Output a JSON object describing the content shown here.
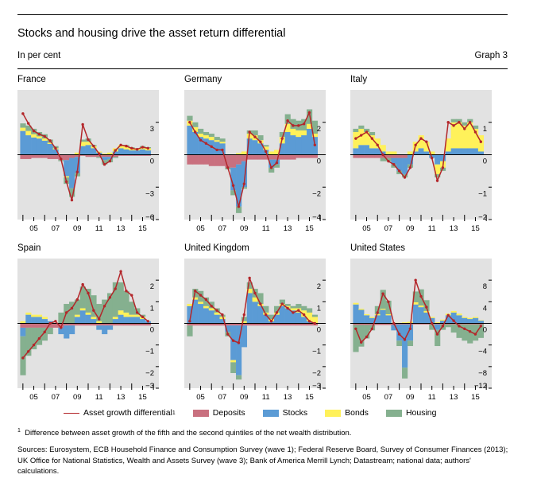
{
  "header": {
    "title": "Stocks and housing drive the asset return differential",
    "subtitle": "In per cent",
    "graph_label": "Graph 3"
  },
  "colors": {
    "differential": "#b3262a",
    "deposits": "#c9707f",
    "stocks": "#5b9bd5",
    "bonds": "#fff15a",
    "housing": "#85b08f",
    "plot_bg": "#e2e2e2"
  },
  "legend": {
    "differential": "Asset growth differential",
    "differential_sup": "1",
    "deposits": "Deposits",
    "stocks": "Stocks",
    "bonds": "Bonds",
    "housing": "Housing"
  },
  "footnote": {
    "marker": "1",
    "text": "Difference between asset growth of the fifth and the second quintiles of the net wealth distribution."
  },
  "sources": "Sources: Eurosystem, ECB Household Finance and Consumption Survey (wave 1); Federal Reserve Board, Survey of Consumer Finances (2013); UK Office for National Statistics, Wealth and Assets Survey (wave 3); Bank of America Merrill Lynch; Datastream; national data; authors' calculations.",
  "chart_data": [
    {
      "type": "bar",
      "title": "France",
      "x_ticks": [
        "05",
        "07",
        "09",
        "11",
        "13",
        "15"
      ],
      "ylim": [
        -6,
        6
      ],
      "y_ticks": [
        3,
        0,
        -3,
        -6
      ],
      "x": [
        2004,
        2004.5,
        2005,
        2005.5,
        2006,
        2006.5,
        2007,
        2007.5,
        2008,
        2008.5,
        2009,
        2009.5,
        2010,
        2010.5,
        2011,
        2011.5,
        2012,
        2012.5,
        2013,
        2013.5,
        2014,
        2014.5,
        2015,
        2015.5
      ],
      "series": [
        {
          "key": "deposits",
          "values": [
            -0.4,
            -0.4,
            -0.3,
            -0.3,
            -0.3,
            -0.4,
            -0.4,
            -0.5,
            -0.5,
            -0.3,
            -0.2,
            -0.1,
            -0.2,
            -0.2,
            -0.2,
            -0.2,
            -0.2,
            -0.2,
            -0.1,
            -0.1,
            -0.1,
            -0.1,
            -0.1,
            -0.1
          ]
        },
        {
          "key": "stocks",
          "values": [
            2.2,
            1.8,
            1.6,
            1.5,
            1.3,
            1.0,
            0.5,
            0.0,
            -1.5,
            -2.8,
            -1.5,
            0.8,
            0.9,
            0.6,
            0.2,
            -0.3,
            -0.2,
            0.3,
            0.6,
            0.5,
            0.4,
            0.4,
            0.5,
            0.4
          ]
        },
        {
          "key": "bonds",
          "values": [
            0.3,
            0.4,
            0.3,
            0.2,
            0.2,
            0.1,
            0.1,
            0.0,
            -0.1,
            0.0,
            0.2,
            0.4,
            0.3,
            0.2,
            0.1,
            0.1,
            0.2,
            0.3,
            0.3,
            0.3,
            0.2,
            0.2,
            0.2,
            0.2
          ]
        },
        {
          "key": "housing",
          "values": [
            0.4,
            0.5,
            0.5,
            0.4,
            0.4,
            0.3,
            0.2,
            -0.1,
            -0.6,
            -0.8,
            -0.3,
            0.2,
            0.3,
            0.1,
            -0.1,
            -0.4,
            -0.3,
            -0.1,
            0.0,
            0.1,
            0.1,
            0.0,
            0.1,
            0.1
          ]
        }
      ],
      "differential": [
        3.8,
        2.9,
        2.2,
        1.9,
        1.7,
        1.3,
        0.6,
        -0.4,
        -2.5,
        -4.2,
        -1.6,
        2.8,
        1.4,
        0.8,
        0.1,
        -0.9,
        -0.6,
        0.4,
        0.9,
        0.8,
        0.6,
        0.5,
        0.7,
        0.6
      ]
    },
    {
      "type": "bar",
      "title": "Germany",
      "x_ticks": [
        "05",
        "07",
        "09",
        "11",
        "13",
        "15"
      ],
      "ylim": [
        -4,
        4
      ],
      "y_ticks": [
        2,
        0,
        -2,
        -4
      ],
      "x": [
        2004,
        2004.5,
        2005,
        2005.5,
        2006,
        2006.5,
        2007,
        2007.5,
        2008,
        2008.5,
        2009,
        2009.5,
        2010,
        2010.5,
        2011,
        2011.5,
        2012,
        2012.5,
        2013,
        2013.5,
        2014,
        2014.5,
        2015,
        2015.5
      ],
      "series": [
        {
          "key": "deposits",
          "values": [
            -0.6,
            -0.6,
            -0.6,
            -0.6,
            -0.7,
            -0.7,
            -0.7,
            -0.8,
            -0.8,
            -0.6,
            -0.4,
            -0.3,
            -0.3,
            -0.3,
            -0.3,
            -0.3,
            -0.3,
            -0.3,
            -0.3,
            -0.3,
            -0.2,
            -0.2,
            -0.2,
            -0.2
          ]
        },
        {
          "key": "stocks",
          "values": [
            1.8,
            1.4,
            1.1,
            1.0,
            0.9,
            0.8,
            0.7,
            0.0,
            -1.4,
            -2.6,
            -1.6,
            1.0,
            0.9,
            0.7,
            0.3,
            -0.5,
            -0.3,
            0.7,
            1.4,
            1.2,
            1.1,
            1.2,
            1.6,
            1.1
          ]
        },
        {
          "key": "bonds",
          "values": [
            0.3,
            0.3,
            0.2,
            0.2,
            0.2,
            0.1,
            0.1,
            0.0,
            0.0,
            0.1,
            0.2,
            0.3,
            0.3,
            0.2,
            0.2,
            0.2,
            0.3,
            0.4,
            0.5,
            0.4,
            0.4,
            0.3,
            0.3,
            0.2
          ]
        },
        {
          "key": "housing",
          "values": [
            0.3,
            0.3,
            0.3,
            0.2,
            0.2,
            0.2,
            0.2,
            -0.1,
            -0.3,
            -0.4,
            -0.1,
            0.2,
            0.3,
            0.3,
            0.1,
            -0.3,
            -0.2,
            0.3,
            0.6,
            0.6,
            0.6,
            0.7,
            0.9,
            0.8
          ]
        }
      ],
      "differential": [
        2.0,
        1.4,
        0.9,
        0.7,
        0.5,
        0.3,
        0.3,
        -0.8,
        -1.9,
        -3.2,
        -1.8,
        1.4,
        1.1,
        0.8,
        0.2,
        -0.8,
        -0.5,
        1.0,
        2.1,
        1.8,
        1.8,
        1.9,
        2.6,
        0.6
      ]
    },
    {
      "type": "bar",
      "title": "Italy",
      "x_ticks": [
        "05",
        "07",
        "09",
        "11",
        "13",
        "15"
      ],
      "ylim": [
        -2,
        2
      ],
      "y_ticks": [
        1,
        0,
        -1,
        -2
      ],
      "x": [
        2004,
        2004.5,
        2005,
        2005.5,
        2006,
        2006.5,
        2007,
        2007.5,
        2008,
        2008.5,
        2009,
        2009.5,
        2010,
        2010.5,
        2011,
        2011.5,
        2012,
        2012.5,
        2013,
        2013.5,
        2014,
        2014.5,
        2015,
        2015.5
      ],
      "series": [
        {
          "key": "deposits",
          "values": [
            -0.1,
            -0.1,
            -0.1,
            -0.1,
            -0.1,
            -0.1,
            -0.1,
            -0.1,
            -0.1,
            -0.1,
            0.0,
            0.0,
            0.0,
            0.0,
            0.0,
            0.0,
            0.0,
            0.0,
            0.0,
            0.0,
            0.0,
            0.0,
            0.0,
            0.0
          ]
        },
        {
          "key": "stocks",
          "values": [
            0.2,
            0.3,
            0.3,
            0.2,
            0.2,
            0.1,
            0.0,
            -0.2,
            -0.4,
            -0.5,
            -0.3,
            0.1,
            0.2,
            0.1,
            -0.1,
            -0.3,
            -0.2,
            0.1,
            0.2,
            0.2,
            0.2,
            0.2,
            0.2,
            0.1
          ]
        },
        {
          "key": "bonds",
          "values": [
            0.5,
            0.5,
            0.4,
            0.4,
            0.3,
            0.2,
            0.1,
            0.1,
            0.0,
            0.0,
            0.1,
            0.3,
            0.4,
            0.3,
            0.1,
            -0.3,
            -0.2,
            0.4,
            0.8,
            0.8,
            0.7,
            0.8,
            0.6,
            0.5
          ]
        },
        {
          "key": "housing",
          "values": [
            0.1,
            0.1,
            0.1,
            0.1,
            0.0,
            -0.1,
            -0.1,
            -0.1,
            -0.1,
            -0.1,
            -0.1,
            0.0,
            0.0,
            0.0,
            0.0,
            -0.1,
            -0.1,
            0.0,
            0.1,
            0.1,
            0.1,
            0.1,
            0.1,
            0.0
          ]
        }
      ],
      "differential": [
        0.5,
        0.6,
        0.7,
        0.5,
        0.3,
        0.0,
        -0.2,
        -0.3,
        -0.5,
        -0.7,
        -0.4,
        0.3,
        0.5,
        0.4,
        -0.1,
        -0.8,
        -0.4,
        1.0,
        0.9,
        1.0,
        0.8,
        1.0,
        0.7,
        0.4
      ]
    },
    {
      "type": "bar",
      "title": "Spain",
      "x_ticks": [
        "05",
        "07",
        "09",
        "11",
        "13",
        "15"
      ],
      "ylim": [
        -3,
        3
      ],
      "y_ticks": [
        2,
        1,
        0,
        -1,
        -2,
        -3
      ],
      "x": [
        2004,
        2004.5,
        2005,
        2005.5,
        2006,
        2006.5,
        2007,
        2007.5,
        2008,
        2008.5,
        2009,
        2009.5,
        2010,
        2010.5,
        2011,
        2011.5,
        2012,
        2012.5,
        2013,
        2013.5,
        2014,
        2014.5,
        2015,
        2015.5
      ],
      "series": [
        {
          "key": "deposits",
          "values": [
            -0.2,
            -0.2,
            -0.2,
            -0.2,
            -0.2,
            -0.2,
            -0.2,
            -0.2,
            -0.1,
            -0.1,
            -0.1,
            -0.1,
            -0.1,
            -0.1,
            -0.1,
            -0.1,
            -0.1,
            -0.1,
            -0.1,
            -0.1,
            -0.1,
            -0.1,
            -0.1,
            -0.1
          ]
        },
        {
          "key": "stocks",
          "values": [
            -0.4,
            0.4,
            0.3,
            0.3,
            0.2,
            0.1,
            0.0,
            -0.3,
            -0.6,
            -0.4,
            0.3,
            0.6,
            0.4,
            0.2,
            -0.2,
            -0.4,
            -0.2,
            0.2,
            0.4,
            0.3,
            0.3,
            0.3,
            0.2,
            0.1
          ]
        },
        {
          "key": "bonds",
          "values": [
            0.1,
            0.1,
            0.1,
            0.1,
            0.1,
            0.0,
            0.0,
            0.0,
            0.0,
            0.0,
            0.1,
            0.1,
            0.1,
            0.1,
            0.1,
            0.0,
            0.0,
            0.1,
            0.2,
            0.2,
            0.1,
            0.1,
            0.1,
            0.0
          ]
        },
        {
          "key": "housing",
          "values": [
            -1.8,
            -1.3,
            -1.0,
            -0.8,
            -0.6,
            -0.3,
            0.0,
            0.5,
            0.9,
            1.0,
            0.7,
            1.0,
            1.1,
            1.0,
            0.8,
            1.1,
            1.4,
            1.6,
            1.3,
            1.0,
            0.6,
            0.3,
            0.1,
            0.0
          ]
        }
      ],
      "differential": [
        -1.6,
        -1.3,
        -1.0,
        -0.7,
        -0.4,
        0.0,
        0.1,
        -0.2,
        0.5,
        0.7,
        1.1,
        1.8,
        1.4,
        0.6,
        0.2,
        0.8,
        1.2,
        1.6,
        2.4,
        1.5,
        1.3,
        0.5,
        0.3,
        0.1
      ]
    },
    {
      "type": "bar",
      "title": "United Kingdom",
      "x_ticks": [
        "05",
        "07",
        "09",
        "11",
        "13",
        "15"
      ],
      "ylim": [
        -3,
        3
      ],
      "y_ticks": [
        2,
        1,
        0,
        -1,
        -2,
        -3
      ],
      "x": [
        2004,
        2004.5,
        2005,
        2005.5,
        2006,
        2006.5,
        2007,
        2007.5,
        2008,
        2008.5,
        2009,
        2009.5,
        2010,
        2010.5,
        2011,
        2011.5,
        2012,
        2012.5,
        2013,
        2013.5,
        2014,
        2014.5,
        2015,
        2015.5
      ],
      "series": [
        {
          "key": "deposits",
          "values": [
            -0.1,
            -0.1,
            -0.1,
            -0.1,
            -0.1,
            -0.1,
            -0.1,
            -0.1,
            -0.1,
            -0.1,
            -0.1,
            -0.1,
            -0.1,
            -0.1,
            -0.1,
            -0.1,
            -0.1,
            -0.1,
            -0.1,
            -0.1,
            -0.1,
            -0.1,
            -0.1,
            -0.1
          ]
        },
        {
          "key": "stocks",
          "values": [
            0.8,
            1.1,
            0.9,
            0.7,
            0.6,
            0.4,
            0.2,
            -0.3,
            -1.6,
            -2.3,
            -1.0,
            1.4,
            1.0,
            0.8,
            0.4,
            0.1,
            0.4,
            0.8,
            0.7,
            0.6,
            0.5,
            0.3,
            0.1,
            0.0
          ]
        },
        {
          "key": "bonds",
          "values": [
            0.1,
            0.1,
            0.1,
            0.1,
            0.1,
            0.1,
            0.1,
            0.0,
            -0.1,
            0.0,
            0.1,
            0.2,
            0.2,
            0.1,
            0.1,
            0.1,
            0.1,
            0.1,
            0.1,
            0.1,
            0.2,
            0.3,
            0.4,
            0.3
          ]
        },
        {
          "key": "housing",
          "values": [
            -0.5,
            0.4,
            0.5,
            0.4,
            0.3,
            0.2,
            0.1,
            -0.2,
            -0.5,
            -0.2,
            0.2,
            0.3,
            0.4,
            0.5,
            0.3,
            0.2,
            0.3,
            0.2,
            0.1,
            0.1,
            0.2,
            0.2,
            0.2,
            0.1
          ]
        }
      ],
      "differential": [
        0.1,
        1.5,
        1.3,
        1.1,
        0.8,
        0.6,
        0.4,
        -0.5,
        -0.8,
        -0.9,
        0.4,
        2.1,
        1.4,
        0.9,
        0.4,
        0.1,
        0.5,
        0.9,
        0.7,
        0.5,
        0.6,
        0.4,
        0.1,
        0.0
      ]
    },
    {
      "type": "bar",
      "title": "United States",
      "x_ticks": [
        "05",
        "07",
        "09",
        "11",
        "13",
        "15"
      ],
      "ylim": [
        -12,
        12
      ],
      "y_ticks": [
        8,
        4,
        0,
        -4,
        -8,
        -12
      ],
      "x": [
        2004,
        2004.5,
        2005,
        2005.5,
        2006,
        2006.5,
        2007,
        2007.5,
        2008,
        2008.5,
        2009,
        2009.5,
        2010,
        2010.5,
        2011,
        2011.5,
        2012,
        2012.5,
        2013,
        2013.5,
        2014,
        2014.5,
        2015,
        2015.5
      ],
      "series": [
        {
          "key": "deposits",
          "values": [
            -0.3,
            -0.3,
            -0.3,
            -0.3,
            -0.3,
            -0.3,
            -0.3,
            -0.3,
            -0.2,
            -0.2,
            -0.2,
            -0.2,
            -0.2,
            -0.2,
            -0.2,
            -0.2,
            -0.2,
            -0.2,
            -0.2,
            -0.2,
            -0.2,
            -0.2,
            -0.2,
            -0.2
          ]
        },
        {
          "key": "stocks",
          "values": [
            3.5,
            2.5,
            1.5,
            1.0,
            1.5,
            2.5,
            1.5,
            -1.0,
            -3.0,
            -8.0,
            -3.0,
            3.5,
            3.0,
            2.0,
            1.0,
            -1.0,
            0.5,
            1.5,
            2.0,
            1.5,
            1.0,
            0.8,
            1.0,
            0.5
          ]
        },
        {
          "key": "bonds",
          "values": [
            0.3,
            0.2,
            0.2,
            0.2,
            0.2,
            0.2,
            0.2,
            0.1,
            0.1,
            0.2,
            0.3,
            0.4,
            0.3,
            0.3,
            0.2,
            0.2,
            0.2,
            0.3,
            0.3,
            0.3,
            0.2,
            0.2,
            0.2,
            0.1
          ]
        },
        {
          "key": "housing",
          "values": [
            -5.0,
            -4.0,
            -2.5,
            -1.0,
            1.5,
            3.5,
            2.5,
            0.0,
            -1.0,
            -2.0,
            -1.0,
            2.0,
            3.0,
            2.0,
            -1.0,
            -3.0,
            -1.0,
            -0.5,
            -1.5,
            -2.5,
            -3.0,
            -3.5,
            -3.0,
            -2.5
          ]
        }
      ],
      "differential": [
        -1.0,
        -3.5,
        -2.5,
        -1.0,
        2.0,
        5.5,
        4.0,
        0.0,
        -2.0,
        -3.0,
        -1.0,
        8.0,
        5.0,
        3.0,
        0.0,
        -2.0,
        -0.5,
        1.5,
        0.5,
        -0.5,
        -1.0,
        -1.5,
        -2.0,
        -0.5
      ]
    }
  ]
}
